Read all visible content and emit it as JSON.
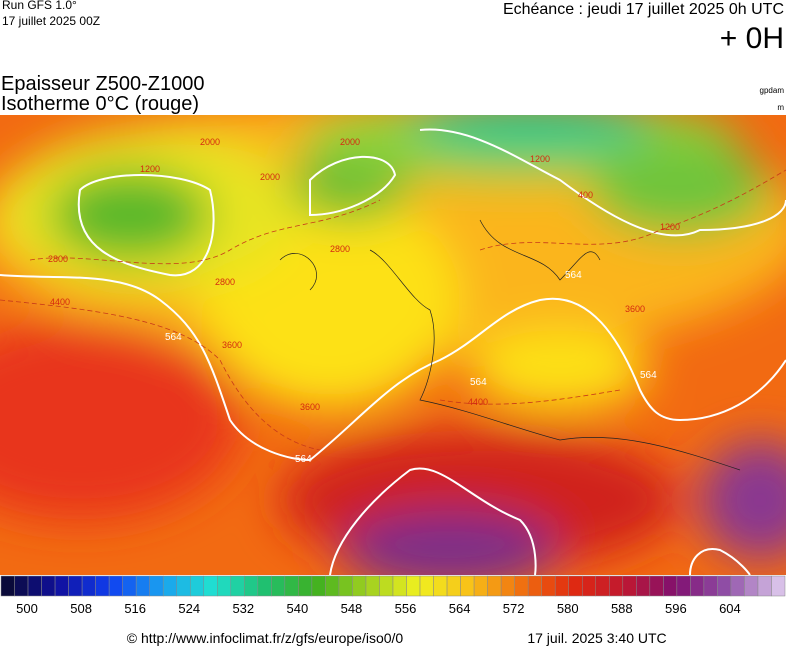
{
  "header": {
    "run": "Run GFS 1.0°",
    "run_date": "17 juillet 2025 00Z",
    "echeance": "Echéance : jeudi 17 juillet 2025 0h UTC",
    "offset": "+ 0H",
    "title": "Epaisseur Z500-Z1000",
    "subtitle": "Isotherme 0°C (rouge)",
    "unit_top": "gpdam",
    "unit_bottom": "m"
  },
  "map": {
    "contour_labels": [
      "564",
      "564",
      "564",
      "564",
      "564",
      "2800",
      "2800",
      "2800",
      "3600",
      "3600",
      "3600",
      "4400",
      "4400",
      "2000",
      "2000",
      "2000",
      "1200",
      "1200",
      "1200",
      "400"
    ]
  },
  "colorbar": {
    "ticks": [
      500,
      508,
      516,
      524,
      532,
      540,
      548,
      556,
      564,
      572,
      580,
      588,
      596,
      604
    ]
  },
  "footer": {
    "source": "© http://www.infoclimat.fr/z/gfs/europe/iso0/0",
    "date": "17 juil. 2025  3:40 UTC"
  }
}
